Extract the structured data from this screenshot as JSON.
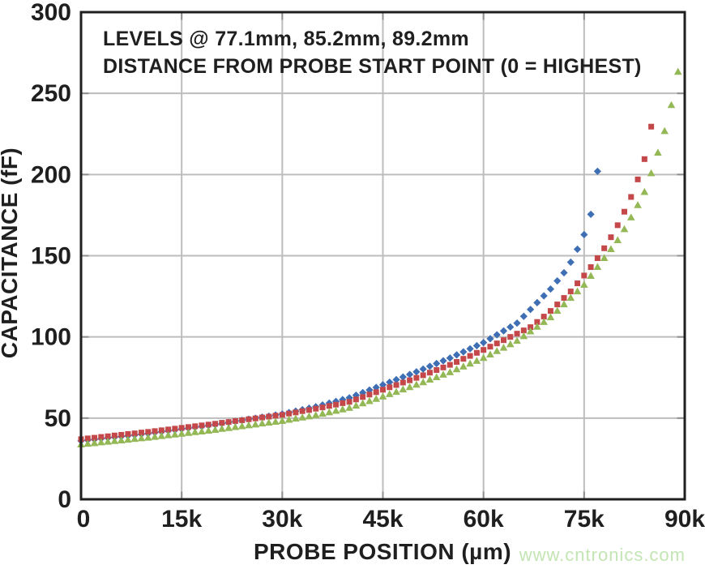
{
  "watermark": "www.cntronics.com",
  "annotation": {
    "line1": "LEVELS @ 77.1mm, 85.2mm, 89.2mm",
    "line2": "DISTANCE FROM PROBE START POINT (0 = HIGHEST)"
  },
  "chart_data": {
    "type": "scatter",
    "title_lines": [
      "LEVELS @ 77.1mm, 85.2mm, 89.2mm",
      "DISTANCE FROM PROBE START POINT (0 = HIGHEST)"
    ],
    "xlabel": "PROBE POSITION (µm)",
    "ylabel": "CAPACITANCE (fF)",
    "xlim": [
      0,
      90000
    ],
    "ylim": [
      0,
      300
    ],
    "grid": true,
    "legend_position": "none",
    "colors": {
      "grid": "#bdbdbd",
      "tick": "#8f8f8f",
      "border": "#1f1f1f",
      "text": "#1f1f1f",
      "watermark": "#c3e5b4",
      "series_blue": "#3e6eb4",
      "series_red": "#c4484a",
      "series_green": "#94b856"
    },
    "x_ticks": [
      {
        "value": 0,
        "label": "0"
      },
      {
        "value": 15000,
        "label": "15k"
      },
      {
        "value": 30000,
        "label": "30k"
      },
      {
        "value": 45000,
        "label": "45k"
      },
      {
        "value": 60000,
        "label": "60k"
      },
      {
        "value": 75000,
        "label": "75k"
      },
      {
        "value": 90000,
        "label": "90k"
      }
    ],
    "y_ticks": [
      {
        "value": 0,
        "label": "0"
      },
      {
        "value": 50,
        "label": "50"
      },
      {
        "value": 100,
        "label": "100"
      },
      {
        "value": 150,
        "label": "150"
      },
      {
        "value": 200,
        "label": "200"
      },
      {
        "value": 250,
        "label": "250"
      },
      {
        "value": 300,
        "label": "300"
      }
    ],
    "x_unit": "µm",
    "y_unit": "fF",
    "series": [
      {
        "name": "level 77.1mm",
        "marker": "diamond",
        "color": "#3e6eb4",
        "x_start": 0,
        "x_step": 1000,
        "values": [
          36.0,
          36.5,
          36.9,
          37.4,
          37.8,
          38.3,
          38.7,
          39.2,
          39.6,
          40.1,
          40.5,
          41.1,
          41.6,
          42.2,
          42.7,
          43.3,
          43.8,
          44.4,
          44.9,
          45.5,
          46.0,
          46.7,
          47.3,
          48.0,
          48.6,
          49.3,
          49.9,
          50.6,
          51.2,
          51.9,
          52.5,
          53.4,
          54.3,
          55.2,
          56.1,
          57.0,
          58.1,
          59.2,
          60.3,
          61.4,
          62.5,
          64.1,
          65.7,
          67.3,
          68.9,
          70.5,
          72.1,
          73.7,
          75.3,
          76.9,
          78.5,
          80.2,
          81.9,
          83.6,
          85.3,
          87.0,
          88.9,
          90.8,
          92.7,
          94.6,
          96.5,
          98.9,
          101.3,
          103.7,
          106.1,
          108.5,
          112.7,
          116.9,
          121.1,
          125.3,
          129.5,
          134.5,
          139.5,
          146.0,
          154.0,
          163.0,
          175.5,
          202.0
        ]
      },
      {
        "name": "level 85.2mm",
        "marker": "square",
        "color": "#c4484a",
        "x_start": 0,
        "x_step": 1000,
        "values": [
          37.0,
          37.5,
          37.9,
          38.4,
          38.8,
          39.3,
          39.7,
          40.2,
          40.6,
          41.1,
          41.5,
          42.0,
          42.5,
          43.0,
          43.5,
          44.0,
          44.5,
          45.0,
          45.5,
          46.0,
          46.5,
          47.1,
          47.6,
          48.2,
          48.7,
          49.3,
          49.8,
          50.4,
          50.9,
          51.5,
          52.0,
          52.8,
          53.5,
          54.3,
          55.0,
          55.8,
          56.6,
          57.5,
          58.3,
          59.2,
          60.0,
          61.5,
          63.0,
          64.5,
          66.0,
          67.5,
          69.0,
          70.4,
          71.9,
          73.3,
          74.8,
          76.4,
          78.0,
          79.6,
          81.2,
          82.8,
          84.6,
          86.5,
          88.3,
          90.2,
          92.0,
          94.0,
          96.0,
          98.0,
          100.0,
          102.0,
          104.0,
          106.0,
          109.2,
          112.5,
          116.0,
          120.0,
          124.0,
          128.0,
          133.0,
          137.8,
          143.0,
          148.5,
          154.6,
          161.4,
          168.8,
          177.1,
          186.2,
          197.0,
          209.5,
          229.5
        ]
      },
      {
        "name": "level 89.2mm",
        "marker": "triangle",
        "color": "#94b856",
        "x_start": 0,
        "x_step": 1000,
        "values": [
          34.0,
          34.4,
          34.8,
          35.3,
          35.7,
          36.1,
          36.5,
          36.9,
          37.4,
          37.8,
          38.2,
          38.7,
          39.2,
          39.7,
          40.1,
          40.6,
          41.1,
          41.6,
          42.0,
          42.5,
          43.0,
          43.6,
          44.1,
          44.7,
          45.2,
          45.8,
          46.3,
          46.9,
          47.4,
          48.0,
          48.5,
          49.2,
          49.9,
          50.6,
          51.3,
          52.0,
          52.9,
          53.8,
          54.7,
          55.6,
          56.5,
          57.9,
          59.3,
          60.7,
          62.1,
          63.5,
          65.0,
          66.4,
          67.9,
          69.3,
          70.8,
          72.3,
          73.9,
          75.4,
          77.0,
          78.5,
          80.3,
          82.0,
          83.8,
          85.5,
          87.3,
          89.4,
          91.5,
          93.6,
          95.7,
          97.8,
          100.7,
          103.6,
          106.5,
          109.4,
          112.3,
          116.3,
          120.3,
          124.3,
          128.3,
          132.3,
          137.8,
          143.3,
          148.8,
          154.3,
          159.8,
          166.6,
          173.8,
          181.4,
          189.5,
          201.0,
          213.7,
          227.0,
          243.0,
          263.5
        ]
      }
    ]
  }
}
